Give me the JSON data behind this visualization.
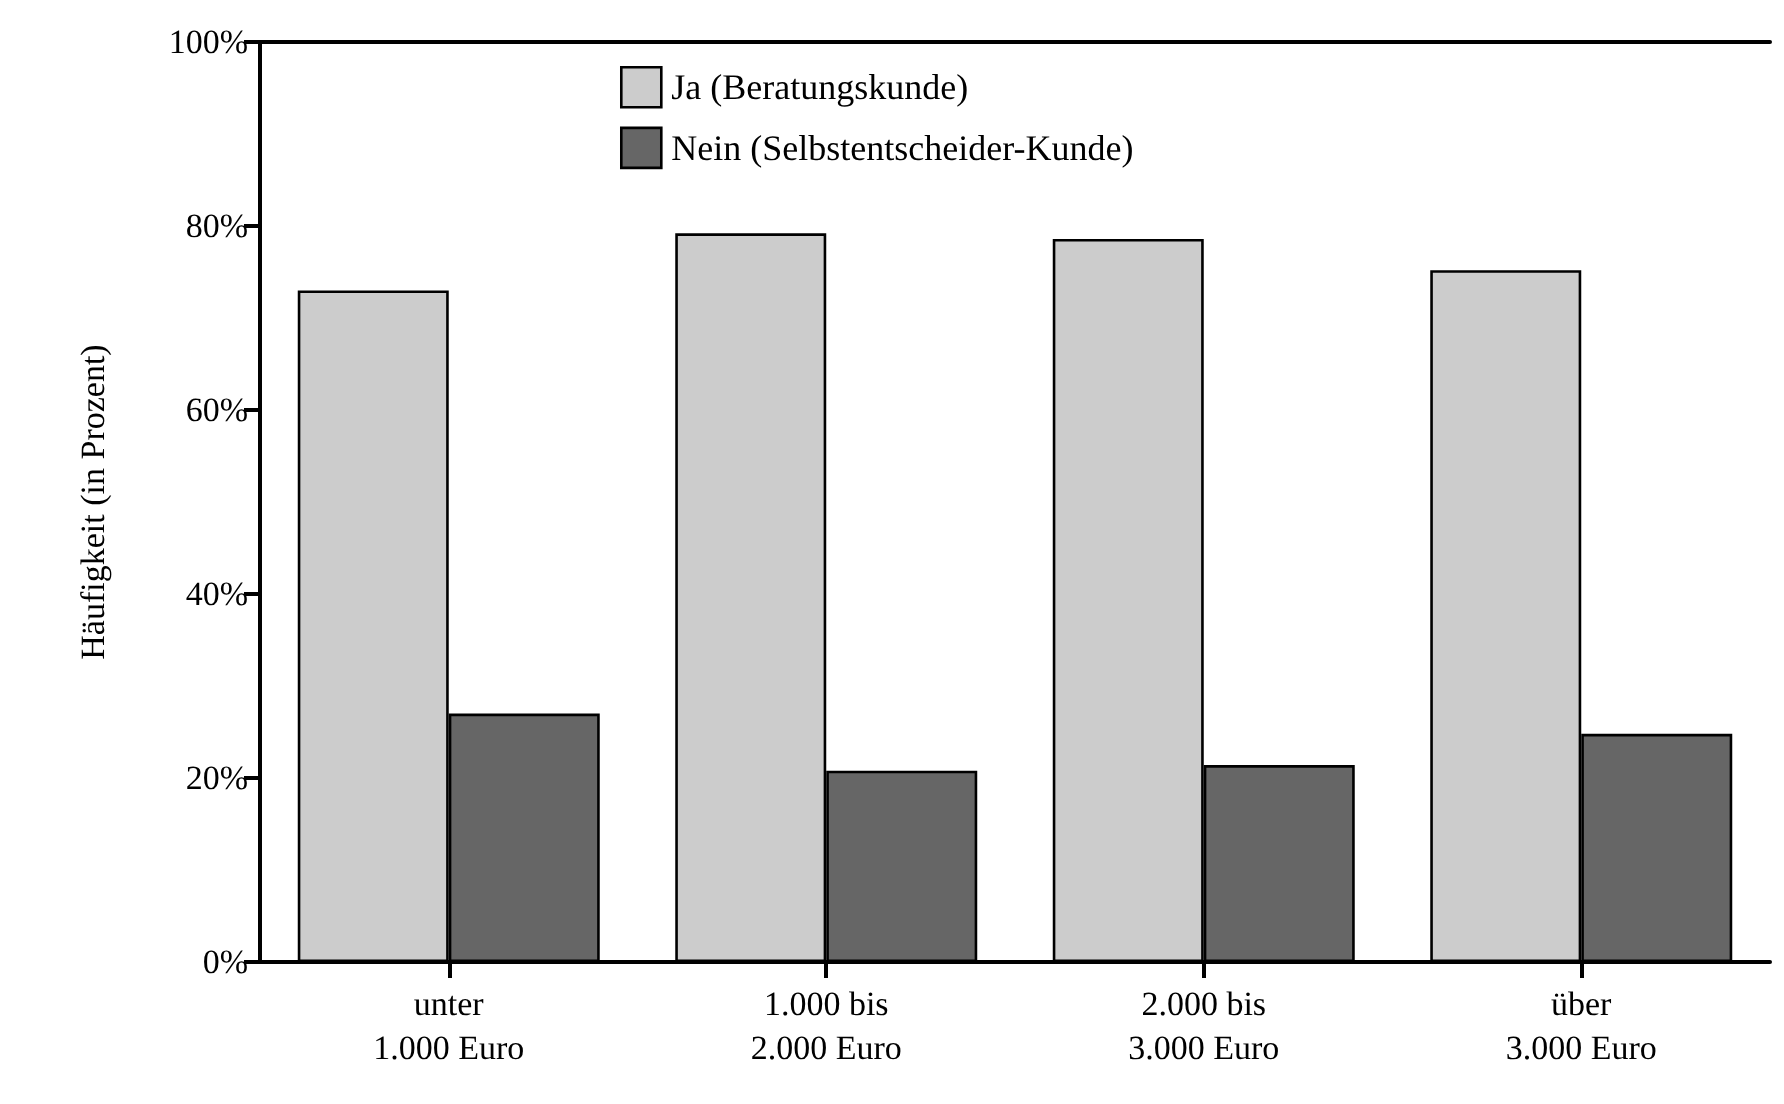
{
  "chart_data": {
    "type": "bar",
    "ylabel": "Häufigkeit (in Prozent)",
    "categories": [
      "unter\n1.000 Euro",
      "1.000 bis\n2.000 Euro",
      "2.000 bis\n3.000 Euro",
      "über\n3.000 Euro"
    ],
    "series": [
      {
        "name": "Ja (Beratungskunde)",
        "color": "#cccccc",
        "values": [
          73,
          79.2,
          78.6,
          75.2
        ]
      },
      {
        "name": "Nein (Selbstentscheider-Kunde)",
        "color": "#666666",
        "values": [
          27,
          20.8,
          21.4,
          24.8
        ]
      }
    ],
    "ylim": [
      0,
      100
    ],
    "yticks": [
      {
        "value": 0,
        "label": "0%"
      },
      {
        "value": 20,
        "label": "20%"
      },
      {
        "value": 40,
        "label": "40%"
      },
      {
        "value": 60,
        "label": "60%"
      },
      {
        "value": 80,
        "label": "80%"
      },
      {
        "value": 100,
        "label": "100%"
      }
    ],
    "grid": false,
    "legend": "top left"
  }
}
